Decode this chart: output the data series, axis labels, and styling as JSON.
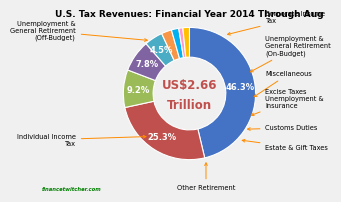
{
  "title": "U.S. Tax Revenues: Financial Year 2014 Through Aug",
  "center_text_line1": "US$2.66",
  "center_text_line2": "Trillion",
  "slices": [
    {
      "label": "Individual Income\nTax",
      "value": 46.3,
      "color": "#4472C4"
    },
    {
      "label": "Unemployment &\nGeneral Retirement\n(Off-Budget)",
      "value": 25.3,
      "color": "#C0504D"
    },
    {
      "label": "Corporate Income\nTax",
      "value": 9.2,
      "color": "#9BBB59"
    },
    {
      "label": "Unemployment &\nGeneral Retirement\n(On-Budget)",
      "value": 7.8,
      "color": "#8064A2"
    },
    {
      "label": "Miscellaneous",
      "value": 4.5,
      "color": "#4BACC6"
    },
    {
      "label": "Excise Taxes\nUnemployment &\nInsurance",
      "value": 2.5,
      "color": "#F79646"
    },
    {
      "label": "Customs Duties",
      "value": 1.8,
      "color": "#00B0F0"
    },
    {
      "label": "Estate & Gift Taxes",
      "value": 1.0,
      "color": "#FF99CC"
    },
    {
      "label": "Other Retirement",
      "value": 1.6,
      "color": "#FFC000"
    }
  ],
  "background_color": "#F0F0F0",
  "title_fontsize": 6.5,
  "label_fontsize": 4.8,
  "pct_fontsize": 6.0,
  "annotation_color": "#FF8C00",
  "watermark": "financetwitcher.com"
}
